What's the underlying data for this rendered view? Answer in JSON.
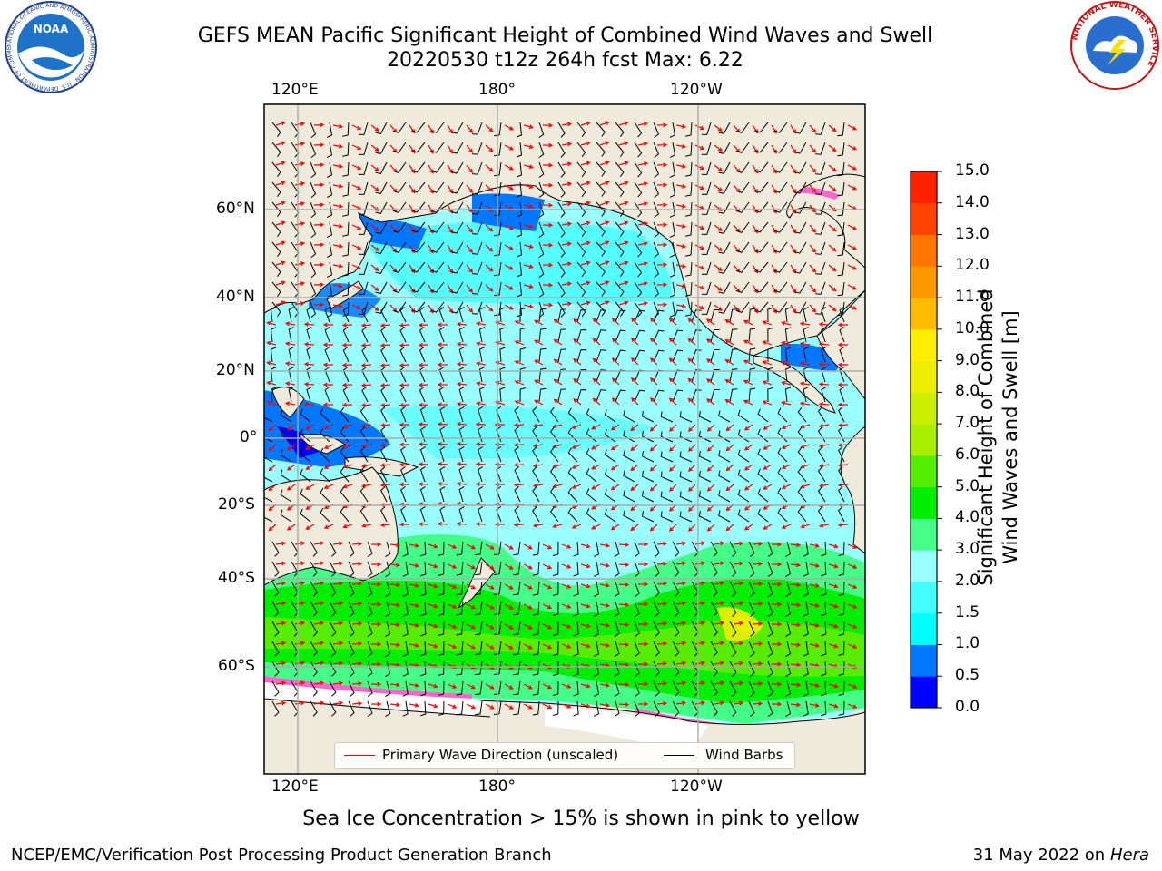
{
  "title_line1": "GEFS MEAN Pacific Significant Height of Combined Wind Waves and Swell",
  "title_line2": "20220530 t12z 264h fcst   Max: 6.22",
  "lon_labels_top": [
    "120°E",
    "180°",
    "120°W"
  ],
  "lon_labels_bottom": [
    "120°E",
    "180°",
    "120°W"
  ],
  "lat_labels": [
    "60°N",
    "40°N",
    "20°N",
    "0°",
    "20°S",
    "40°S",
    "60°S"
  ],
  "colorbar": {
    "title_line1": "Significant Height of Combined",
    "title_line2": "Wind Waves and Swell [m]",
    "ticks": [
      "15.0",
      "14.0",
      "13.0",
      "12.0",
      "11.0",
      "10.0",
      "9.0",
      "8.0",
      "7.0",
      "6.0",
      "5.0",
      "4.0",
      "3.0",
      "2.0",
      "1.5",
      "1.0",
      "0.5",
      "0.0"
    ],
    "colors_low_to_high": [
      "#0000ff",
      "#0077ff",
      "#00ffff",
      "#44ffff",
      "#99ffff",
      "#44ff88",
      "#00ee00",
      "#55ee00",
      "#aaee00",
      "#ccee00",
      "#eeee00",
      "#ffee00",
      "#ffbb00",
      "#ff9900",
      "#ff7700",
      "#ff4400",
      "#ff2200"
    ]
  },
  "legend": {
    "wave_label": "Primary Wave Direction (unscaled)",
    "wave_color": "#ff0000",
    "barb_label": "Wind Barbs",
    "barb_color": "#000000"
  },
  "bottom_note": "Sea Ice Concentration > 15% is shown in pink to yellow",
  "footer_left": "NCEP/EMC/Verification Post Processing Product Generation Branch",
  "footer_date": "31 May 2022 on",
  "footer_host": "Hera",
  "logos": {
    "noaa_text": "NOAA",
    "noaa_ring_text": "NATIONAL OCEANIC AND ATMOSPHERIC ADMINISTRATION · U.S. DEPARTMENT OF COMMERCE",
    "nws_ring_text": "NATIONAL WEATHER SERVICE"
  }
}
